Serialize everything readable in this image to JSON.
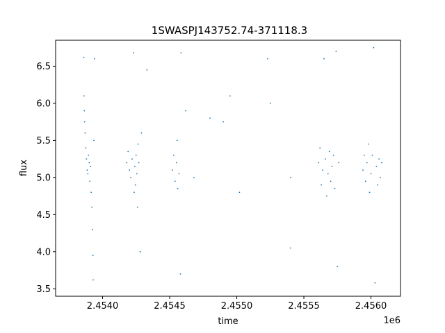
{
  "chart_data": {
    "type": "scatter",
    "title": "1SWASPJ143752.74-371118.3",
    "xlabel": "time",
    "ylabel": "flux",
    "x_offset_label": "1e6",
    "x_scale": 1000000,
    "xlim": [
      2453650,
      2456220
    ],
    "ylim": [
      3.4,
      6.85
    ],
    "x_ticks": [
      2454000,
      2454500,
      2455000,
      2455500,
      2456000
    ],
    "x_tick_labels": [
      "2.4540",
      "2.4545",
      "2.4550",
      "2.4555",
      "2.4560"
    ],
    "y_ticks": [
      3.5,
      4.0,
      4.5,
      5.0,
      5.5,
      6.0,
      6.5
    ],
    "y_tick_labels": [
      "3.5",
      "4.0",
      "4.5",
      "5.0",
      "5.5",
      "6.0",
      "6.5"
    ],
    "grid": false,
    "marker_color": "#1f77b4",
    "series": [
      {
        "values": [
          {
            "x": 2453860,
            "y": 6.62
          },
          {
            "x": 2453862,
            "y": 6.1
          },
          {
            "x": 2453864,
            "y": 5.9
          },
          {
            "x": 2453866,
            "y": 5.75
          },
          {
            "x": 2453870,
            "y": 5.6
          },
          {
            "x": 2453875,
            "y": 5.4
          },
          {
            "x": 2453880,
            "y": 5.25
          },
          {
            "x": 2453885,
            "y": 5.1
          },
          {
            "x": 2453890,
            "y": 5.05
          },
          {
            "x": 2453895,
            "y": 5.3
          },
          {
            "x": 2453900,
            "y": 5.2
          },
          {
            "x": 2453905,
            "y": 4.95
          },
          {
            "x": 2453910,
            "y": 5.15
          },
          {
            "x": 2453915,
            "y": 4.8
          },
          {
            "x": 2453920,
            "y": 4.6
          },
          {
            "x": 2453925,
            "y": 4.3
          },
          {
            "x": 2453928,
            "y": 3.95
          },
          {
            "x": 2453930,
            "y": 3.62
          },
          {
            "x": 2453935,
            "y": 5.5
          },
          {
            "x": 2453940,
            "y": 6.6
          },
          {
            "x": 2454180,
            "y": 5.2
          },
          {
            "x": 2454190,
            "y": 5.35
          },
          {
            "x": 2454200,
            "y": 5.1
          },
          {
            "x": 2454210,
            "y": 5.0
          },
          {
            "x": 2454220,
            "y": 5.25
          },
          {
            "x": 2454230,
            "y": 6.68
          },
          {
            "x": 2454235,
            "y": 4.8
          },
          {
            "x": 2454240,
            "y": 5.15
          },
          {
            "x": 2454245,
            "y": 4.9
          },
          {
            "x": 2454250,
            "y": 5.3
          },
          {
            "x": 2454255,
            "y": 5.05
          },
          {
            "x": 2454260,
            "y": 4.6
          },
          {
            "x": 2454265,
            "y": 5.45
          },
          {
            "x": 2454270,
            "y": 5.2
          },
          {
            "x": 2454280,
            "y": 4.0
          },
          {
            "x": 2454290,
            "y": 5.6
          },
          {
            "x": 2454330,
            "y": 6.45
          },
          {
            "x": 2454520,
            "y": 5.1
          },
          {
            "x": 2454530,
            "y": 5.3
          },
          {
            "x": 2454540,
            "y": 4.95
          },
          {
            "x": 2454550,
            "y": 5.2
          },
          {
            "x": 2454555,
            "y": 5.5
          },
          {
            "x": 2454560,
            "y": 4.85
          },
          {
            "x": 2454570,
            "y": 5.05
          },
          {
            "x": 2454580,
            "y": 3.7
          },
          {
            "x": 2454585,
            "y": 6.68
          },
          {
            "x": 2454620,
            "y": 5.9
          },
          {
            "x": 2454680,
            "y": 5.0
          },
          {
            "x": 2454800,
            "y": 5.8
          },
          {
            "x": 2454900,
            "y": 5.75
          },
          {
            "x": 2454950,
            "y": 6.1
          },
          {
            "x": 2455020,
            "y": 4.8
          },
          {
            "x": 2455230,
            "y": 6.6
          },
          {
            "x": 2455250,
            "y": 6.0
          },
          {
            "x": 2455400,
            "y": 5.0
          },
          {
            "x": 2455400,
            "y": 4.05
          },
          {
            "x": 2455610,
            "y": 5.2
          },
          {
            "x": 2455620,
            "y": 5.4
          },
          {
            "x": 2455630,
            "y": 4.9
          },
          {
            "x": 2455640,
            "y": 5.1
          },
          {
            "x": 2455650,
            "y": 6.6
          },
          {
            "x": 2455660,
            "y": 5.25
          },
          {
            "x": 2455670,
            "y": 4.75
          },
          {
            "x": 2455680,
            "y": 5.05
          },
          {
            "x": 2455690,
            "y": 5.35
          },
          {
            "x": 2455700,
            "y": 4.95
          },
          {
            "x": 2455710,
            "y": 5.15
          },
          {
            "x": 2455720,
            "y": 5.3
          },
          {
            "x": 2455730,
            "y": 4.85
          },
          {
            "x": 2455740,
            "y": 6.7
          },
          {
            "x": 2455750,
            "y": 3.8
          },
          {
            "x": 2455760,
            "y": 5.2
          },
          {
            "x": 2455940,
            "y": 5.1
          },
          {
            "x": 2455950,
            "y": 5.3
          },
          {
            "x": 2455960,
            "y": 4.95
          },
          {
            "x": 2455970,
            "y": 5.2
          },
          {
            "x": 2455980,
            "y": 5.45
          },
          {
            "x": 2455990,
            "y": 4.8
          },
          {
            "x": 2456000,
            "y": 5.05
          },
          {
            "x": 2456010,
            "y": 5.3
          },
          {
            "x": 2456020,
            "y": 6.75
          },
          {
            "x": 2456030,
            "y": 3.58
          },
          {
            "x": 2456040,
            "y": 5.15
          },
          {
            "x": 2456050,
            "y": 4.9
          },
          {
            "x": 2456060,
            "y": 5.25
          },
          {
            "x": 2456070,
            "y": 5.0
          },
          {
            "x": 2456080,
            "y": 5.2
          }
        ]
      }
    ]
  }
}
